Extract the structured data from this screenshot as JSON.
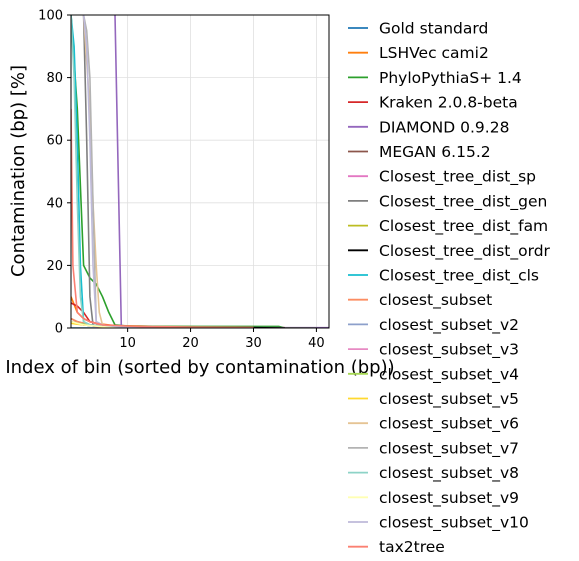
{
  "chart_data": {
    "type": "line",
    "xlabel": "Index of bin (sorted by contamination (bp))",
    "ylabel": "Contamination (bp) [%]",
    "xlim": [
      1,
      42
    ],
    "ylim": [
      0,
      100
    ],
    "xticks": [
      10,
      20,
      30,
      40
    ],
    "yticks": [
      0,
      20,
      40,
      60,
      80,
      100
    ],
    "grid": true,
    "legend_placement": "outside-right",
    "series": [
      {
        "name": "Gold standard",
        "color": "#1f77b4",
        "x": [
          1,
          42
        ],
        "y": [
          0,
          0
        ]
      },
      {
        "name": "LSHVec cami2",
        "color": "#ff7f0e",
        "x": [
          1,
          2,
          3,
          4,
          5,
          6,
          7,
          8,
          10,
          12,
          15,
          20,
          25,
          30,
          35
        ],
        "y": [
          10,
          5,
          3,
          2,
          1.5,
          1.2,
          1,
          0.8,
          0.7,
          0.6,
          0.5,
          0.4,
          0.3,
          0.2,
          0.1
        ]
      },
      {
        "name": "PhyloPythiaS+ 1.4",
        "color": "#2ca02c",
        "x": [
          1,
          2,
          3,
          4,
          5,
          6,
          7,
          8,
          10,
          15,
          20,
          25,
          30,
          34,
          35
        ],
        "y": [
          100,
          70,
          20,
          16,
          14,
          10,
          5,
          1,
          0.6,
          0.5,
          0.5,
          0.5,
          0.5,
          0.5,
          0
        ]
      },
      {
        "name": "Kraken 2.0.8-beta",
        "color": "#d62728",
        "x": [
          1,
          2,
          3,
          4,
          5,
          6,
          8,
          10,
          15,
          20,
          25,
          30,
          32
        ],
        "y": [
          8,
          7,
          5,
          2,
          1.5,
          1,
          0.8,
          0.5,
          0.3,
          0.2,
          0.1,
          0.05,
          0
        ]
      },
      {
        "name": "DIAMOND 0.9.28",
        "color": "#9467bd",
        "x": [
          8,
          9,
          9.3,
          12,
          20,
          30,
          40,
          42
        ],
        "y": [
          100,
          0.6,
          0.4,
          0.3,
          0.2,
          0.1,
          0.1,
          0.1
        ]
      },
      {
        "name": "MEGAN 6.15.2",
        "color": "#8c564b",
        "x": [
          1,
          2,
          3,
          4,
          5,
          6,
          8,
          10,
          15,
          20,
          25,
          30
        ],
        "y": [
          3,
          2,
          1.5,
          1,
          0.8,
          0.6,
          0.4,
          0.3,
          0.2,
          0.1,
          0.05,
          0
        ]
      },
      {
        "name": "Closest_tree_dist_sp",
        "color": "#e377c2",
        "x": [
          1,
          2,
          3,
          4,
          5,
          6,
          8,
          10
        ],
        "y": [
          2,
          1.5,
          1.2,
          0.8,
          0.5,
          0.3,
          0.2,
          0
        ]
      },
      {
        "name": "Closest_tree_dist_gen",
        "color": "#7f7f7f",
        "x": [
          3,
          3.5,
          4,
          4.5,
          5,
          6,
          8,
          12,
          20,
          30,
          40
        ],
        "y": [
          100,
          60,
          10,
          1,
          0.8,
          0.6,
          0.5,
          0.3,
          0.2,
          0.1,
          0
        ]
      },
      {
        "name": "Closest_tree_dist_fam",
        "color": "#bcbd22",
        "x": [
          1,
          2,
          3,
          4,
          5,
          6,
          8,
          12,
          15,
          20
        ],
        "y": [
          2,
          1.5,
          1,
          0.8,
          0.6,
          0.4,
          0.3,
          0.2,
          0.1,
          0
        ]
      },
      {
        "name": "Closest_tree_dist_ordr",
        "color": "#000000",
        "x": [
          1,
          2,
          3,
          4,
          5,
          6,
          8,
          12,
          20,
          30,
          35
        ],
        "y": [
          2,
          1.5,
          1,
          0.8,
          0.6,
          0.5,
          0.4,
          0.3,
          0.2,
          0.1,
          0
        ]
      },
      {
        "name": "Closest_tree_dist_cls",
        "color": "#17becf",
        "x": [
          1,
          1.5,
          2,
          2.5,
          3,
          4,
          5,
          6,
          8,
          12,
          20
        ],
        "y": [
          100,
          90,
          60,
          20,
          2,
          1,
          0.8,
          0.6,
          0.4,
          0.2,
          0
        ]
      },
      {
        "name": "closest_subset",
        "color": "#fc8d62",
        "x": [
          1,
          2,
          3,
          4,
          5,
          6,
          7,
          8,
          10,
          12,
          15,
          20,
          30
        ],
        "y": [
          3,
          2,
          1.5,
          1,
          0.8,
          0.6,
          0.5,
          0.4,
          0.3,
          0.2,
          0.1,
          0.05,
          0
        ]
      },
      {
        "name": "closest_subset_v2",
        "color": "#8da0cb",
        "x": [
          1,
          2,
          3,
          4,
          5,
          6,
          8,
          12,
          20
        ],
        "y": [
          2,
          1.5,
          1.2,
          1,
          0.8,
          0.5,
          0.3,
          0.2,
          0
        ]
      },
      {
        "name": "closest_subset_v3",
        "color": "#e78ac3",
        "x": [
          1,
          2,
          3,
          4,
          5,
          6,
          8,
          10,
          15
        ],
        "y": [
          2,
          1.5,
          1,
          0.8,
          0.6,
          0.4,
          0.3,
          0.2,
          0
        ]
      },
      {
        "name": "closest_subset_v4",
        "color": "#a6d854",
        "x": [
          1,
          2,
          3,
          4,
          5,
          6,
          8,
          12
        ],
        "y": [
          2,
          1.5,
          1.2,
          0.9,
          0.6,
          0.4,
          0.2,
          0
        ]
      },
      {
        "name": "closest_subset_v5",
        "color": "#ffd92f",
        "x": [
          1,
          2,
          3,
          4,
          5,
          6,
          8,
          12
        ],
        "y": [
          1.5,
          1.2,
          1,
          0.8,
          0.6,
          0.4,
          0.2,
          0
        ]
      },
      {
        "name": "closest_subset_v6",
        "color": "#e5c494",
        "x": [
          3,
          3.5,
          4,
          4.5,
          5,
          5.5,
          6,
          8,
          12
        ],
        "y": [
          100,
          85,
          70,
          40,
          20,
          5,
          1,
          0.5,
          0
        ]
      },
      {
        "name": "closest_subset_v7",
        "color": "#b3b3b3",
        "x": [
          3,
          3.5,
          4,
          4.5,
          5,
          6,
          8,
          12
        ],
        "y": [
          100,
          95,
          80,
          40,
          2,
          1,
          0.5,
          0
        ]
      },
      {
        "name": "closest_subset_v8",
        "color": "#8dd3c7",
        "x": [
          1,
          1.5,
          2,
          2.5,
          3,
          4,
          6,
          10
        ],
        "y": [
          100,
          80,
          40,
          10,
          2,
          1,
          0.5,
          0
        ]
      },
      {
        "name": "closest_subset_v9",
        "color": "#ffffb3",
        "x": [
          1,
          2,
          3,
          4,
          6,
          10
        ],
        "y": [
          2,
          1.5,
          1,
          0.8,
          0.4,
          0
        ]
      },
      {
        "name": "closest_subset_v10",
        "color": "#bebada",
        "x": [
          3,
          3.5,
          4,
          4.5,
          5,
          6,
          8,
          12
        ],
        "y": [
          100,
          90,
          60,
          20,
          2,
          1,
          0.5,
          0
        ]
      },
      {
        "name": "tax2tree",
        "color": "#fb8072",
        "x": [
          1,
          1.3,
          2,
          3,
          4,
          5,
          6,
          8,
          10,
          12,
          15,
          20,
          30
        ],
        "y": [
          70,
          20,
          5,
          3,
          2,
          1.5,
          1,
          0.8,
          0.6,
          0.5,
          0.4,
          0.3,
          0.2
        ]
      }
    ]
  }
}
